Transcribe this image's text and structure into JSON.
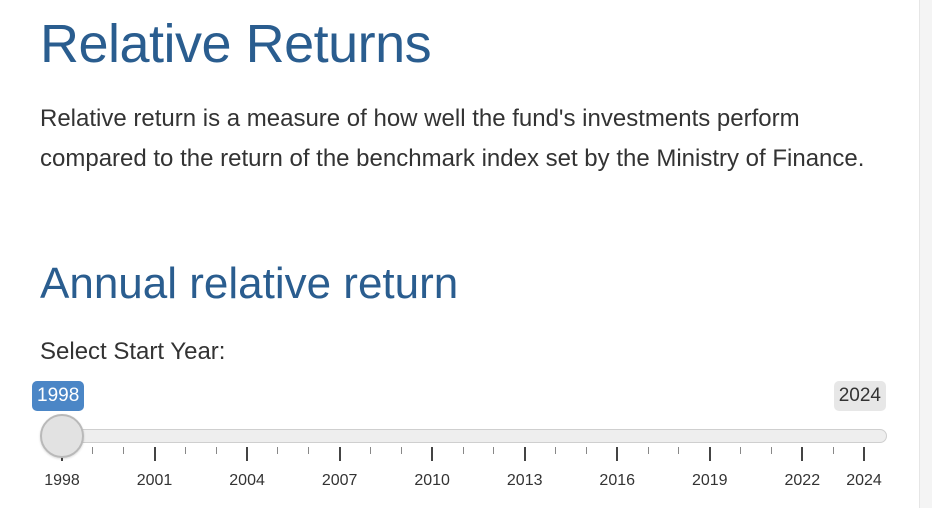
{
  "page": {
    "title": "Relative Returns",
    "intro": "Relative return is a measure of how well the fund's investments perform compared to the return of the benchmark index set by the Ministry of Finance.",
    "section_title": "Annual relative return"
  },
  "slider": {
    "label": "Select Start Year:",
    "min": 1998,
    "max": 2024,
    "selected_from": "1998",
    "max_label": "2024",
    "tick_labels": [
      "1998",
      "2001",
      "2004",
      "2007",
      "2010",
      "2013",
      "2016",
      "2019",
      "2022",
      "2024"
    ],
    "accent_color": "#4b86c6",
    "heading_color": "#2a5d8f"
  }
}
